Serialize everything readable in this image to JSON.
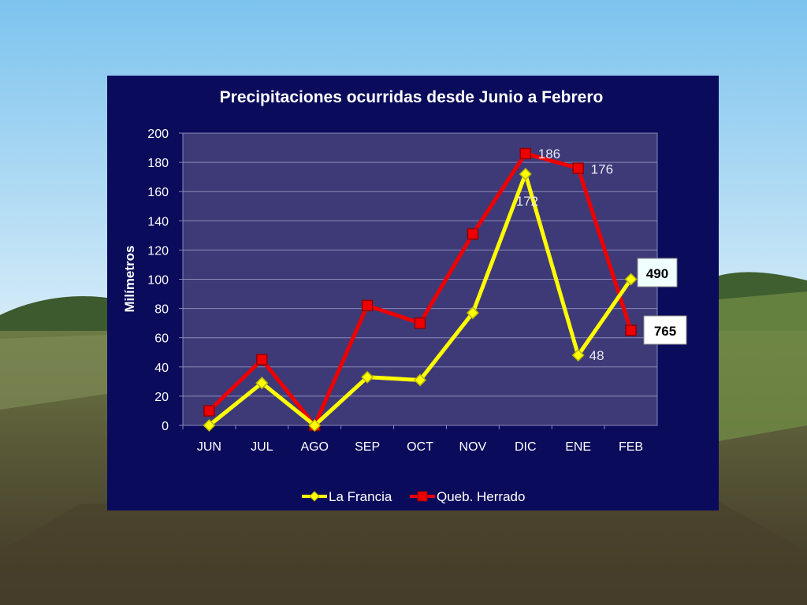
{
  "colors": {
    "panel": "#0b0b5c",
    "plot_area": "#3e3a78",
    "gridline": "#8a88b8",
    "text": "#ffffff",
    "series_la_francia": "#ffff00",
    "series_queb_herrado": "#ee0000"
  },
  "chart_data": {
    "type": "line",
    "title": "Precipitaciones ocurridas desde Junio a Febrero",
    "ylabel": "Milímetros",
    "xlabel": "",
    "categories": [
      "JUN",
      "JUL",
      "AGO",
      "SEP",
      "OCT",
      "NOV",
      "DIC",
      "ENE",
      "FEB"
    ],
    "ylim": [
      0,
      200
    ],
    "yticks": [
      0,
      20,
      40,
      60,
      80,
      100,
      120,
      140,
      160,
      180,
      200
    ],
    "grid": true,
    "legend": "bottom",
    "series": [
      {
        "name": "La Francia",
        "marker": "diamond",
        "values": [
          0,
          29,
          0,
          33,
          31,
          77,
          172,
          48,
          100
        ],
        "data_labels": {
          "6": "172",
          "7": "48"
        }
      },
      {
        "name": "Queb. Herrado",
        "marker": "square",
        "values": [
          10,
          45,
          0,
          82,
          70,
          131,
          186,
          176,
          65
        ],
        "data_labels": {
          "6": "186",
          "7": "176"
        }
      }
    ],
    "annotations": [
      {
        "text": "490",
        "series": "La Francia"
      },
      {
        "text": "765",
        "series": "Queb. Herrado"
      }
    ]
  }
}
